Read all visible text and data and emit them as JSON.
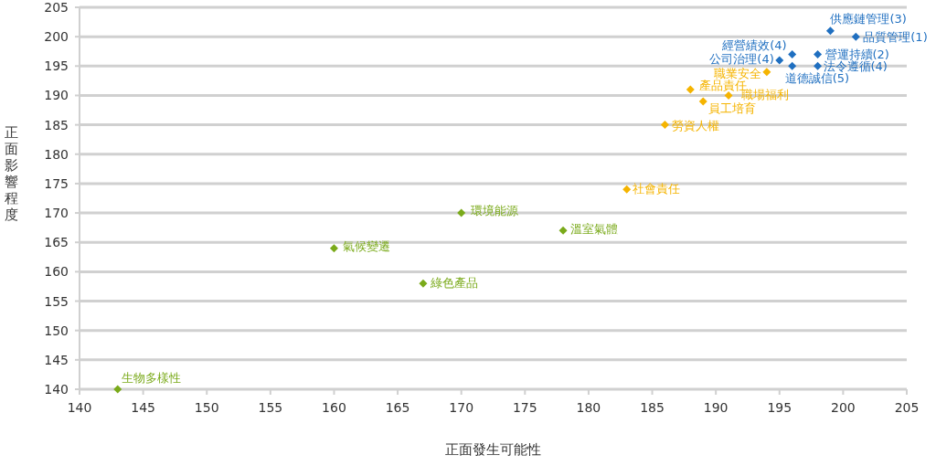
{
  "chart_data": {
    "type": "scatter",
    "xlabel": "正面發生可能性",
    "ylabel": "正面影響程度",
    "xlim": [
      140,
      205
    ],
    "ylim": [
      140,
      205
    ],
    "xticks": [
      140,
      145,
      150,
      155,
      160,
      165,
      170,
      175,
      180,
      185,
      190,
      195,
      200,
      205
    ],
    "yticks": [
      140,
      145,
      150,
      155,
      160,
      165,
      170,
      175,
      180,
      185,
      190,
      195,
      200,
      205
    ],
    "grid": "y",
    "marker": "diamond",
    "series": [
      {
        "color": "#1f6fc0",
        "x": [
          199,
          201,
          196,
          195,
          198,
          196,
          198
        ],
        "values": [
          201,
          200,
          197,
          196,
          197,
          195,
          195
        ]
      },
      {
        "color": "#f5b400",
        "x": [
          194,
          188,
          191,
          189,
          186,
          183
        ],
        "values": [
          194,
          191,
          190,
          189,
          185,
          174
        ]
      },
      {
        "color": "#7aaa1a",
        "x": [
          170,
          178,
          160,
          167,
          143
        ],
        "values": [
          170,
          167,
          164,
          158,
          140
        ]
      }
    ],
    "annotations": [
      {
        "text": "供應鏈管理(3)",
        "x": 199,
        "y": 201
      },
      {
        "text": "品質管理(1)",
        "x": 201,
        "y": 200
      },
      {
        "text": "經營績效(4)",
        "x": 196,
        "y": 197
      },
      {
        "text": "公司治理(4)",
        "x": 195,
        "y": 196
      },
      {
        "text": "營運持續(2)",
        "x": 198,
        "y": 197
      },
      {
        "text": "道德誠信(5)",
        "x": 196,
        "y": 195
      },
      {
        "text": "法令遵循(4)",
        "x": 198,
        "y": 195
      },
      {
        "text": "職業安全",
        "x": 194,
        "y": 194
      },
      {
        "text": "產品責任",
        "x": 188,
        "y": 191
      },
      {
        "text": "職場福利",
        "x": 191,
        "y": 190
      },
      {
        "text": "員工培育",
        "x": 189,
        "y": 189
      },
      {
        "text": "勞資人權",
        "x": 186,
        "y": 185
      },
      {
        "text": "社會責任",
        "x": 183,
        "y": 174
      },
      {
        "text": "環境能源",
        "x": 170,
        "y": 170
      },
      {
        "text": "溫室氣體",
        "x": 178,
        "y": 167
      },
      {
        "text": "氣候變遷",
        "x": 160,
        "y": 164
      },
      {
        "text": "綠色產品",
        "x": 167,
        "y": 158
      },
      {
        "text": "生物多樣性",
        "x": 143,
        "y": 140
      }
    ]
  }
}
